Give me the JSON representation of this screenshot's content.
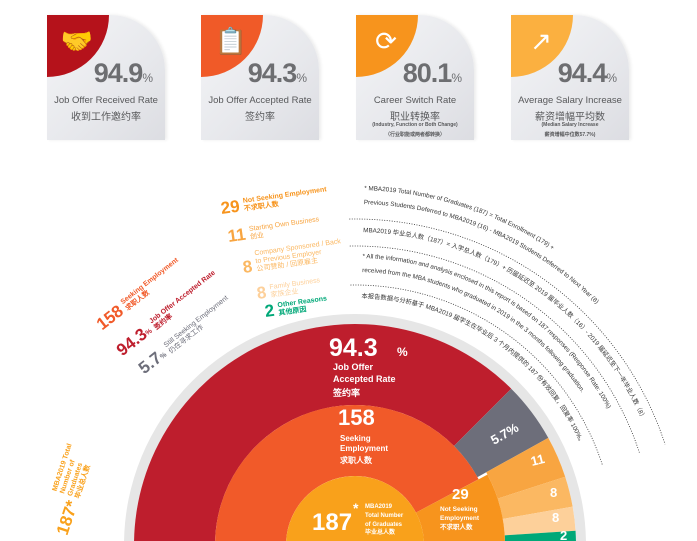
{
  "cards": [
    {
      "value": "94.9",
      "unit": "%",
      "label_en": "Job Offer Received Rate",
      "label_zh": "收到工作邀约率",
      "note_en": "",
      "note_zh": "",
      "color": "#b5121b",
      "icon": "handshake-icon"
    },
    {
      "value": "94.3",
      "unit": "%",
      "label_en": "Job Offer Accepted Rate",
      "label_zh": "签约率",
      "note_en": "",
      "note_zh": "",
      "color": "#f05a28",
      "icon": "contract-icon"
    },
    {
      "value": "80.1",
      "unit": "%",
      "label_en": "Career Switch Rate",
      "label_zh": "职业转换率",
      "note_en": "(Industry, Function or Both Change)",
      "note_zh": "（行业职能或两者都转换）",
      "color": "#f7941d",
      "icon": "career-switch-icon"
    },
    {
      "value": "94.4",
      "unit": "%",
      "label_en": "Average Salary Increase",
      "label_zh": "薪资增幅平均数",
      "note_en": "(Median Salary Increase",
      "note_zh": "薪资增幅中位数57.7%)",
      "color": "#fbb040",
      "icon": "salary-growth-icon"
    }
  ],
  "legend": {
    "not_seeking": {
      "value": "29",
      "en": "Not Seeking Employment",
      "zh": "不求职人数"
    },
    "own_business": {
      "value": "11",
      "en": "Starting Own Business",
      "zh": "创业"
    },
    "sponsored": {
      "value": "8",
      "en": "Company Sponsored / Back to Previous Employer",
      "zh": "公司赞助 / 回原雇主"
    },
    "family": {
      "value": "8",
      "en": "Family Business",
      "zh": "家族企业"
    },
    "other": {
      "value": "2",
      "en": "Other Reasons",
      "zh": "其他原因"
    },
    "seeking": {
      "value": "158",
      "en": "Seeking Employment",
      "zh": "求职人数"
    },
    "accepted": {
      "value": "94.3",
      "unit": "%",
      "en": "Job Offer Accepted Rate",
      "zh": "签约率"
    },
    "still": {
      "value": "5.7",
      "unit": "%",
      "en": "Still Seeking Employment",
      "zh": "仍在寻求工作"
    },
    "total": {
      "value": "187*",
      "en": "MBA2019 Total Number of Graduates",
      "zh": "毕业总人数"
    }
  },
  "notes": [
    "* MBA2019 Total Number of Graduates (187) = Total Enrollment (179) +",
    "Previous Students Deferred to MBA2019 (16) - MBA2019 Students Deferred to Next Year (8)",
    "MBA2019 毕业总人数（187）= 入学总人数（179）+ 历届延迟至 2019 届毕业人数（16）- 2019 届延迟至下一年毕业人数（8）",
    "* All the information and analysis enclosed in this report is based on 187 responses (Response Rate: 100%)",
    "received from the MBA students who graduated in 2019 in the 3 months following graduation.",
    "本报告数据与分析基于 MBA2019 届学生在毕业后 3 个月内提供的 187 份有效回复，回复率 100%。"
  ],
  "chart_labels": {
    "accepted_value": "94.3",
    "accepted_unit": "%",
    "accepted_en1": "Job Offer",
    "accepted_en2": "Accepted Rate",
    "accepted_zh": "签约率",
    "seeking_value": "158",
    "seeking_en1": "Seeking",
    "seeking_en2": "Employment",
    "seeking_zh": "求职人数",
    "total_value": "187",
    "total_star": "*",
    "total_en1": "MBA2019",
    "total_en2": "Total Number",
    "total_en3": "of Graduates",
    "total_zh": "毕业总人数",
    "not_value": "29",
    "not_en1": "Not Seeking",
    "not_en2": "Employment",
    "not_zh": "不求职人数",
    "still_value": "5.7%",
    "own": "11",
    "sponsored": "8",
    "family": "8",
    "other": "2"
  },
  "chart_data": {
    "type": "pie",
    "variant": "semicircular sunburst",
    "levels": [
      [
        {
          "name": "MBA2019 Total Number of Graduates",
          "value": 187,
          "color": "#f9a11b"
        }
      ],
      [
        {
          "name": "Seeking Employment",
          "value": 158,
          "color": "#f15a29"
        },
        {
          "name": "Not Seeking Employment",
          "value": 29,
          "color": "#f7941d"
        }
      ],
      [
        {
          "name": "Job Offer Accepted Rate",
          "value": 94.3,
          "unit": "%",
          "parent": "Seeking Employment",
          "color": "#be1e2d"
        },
        {
          "name": "Still Seeking Employment",
          "value": 5.7,
          "unit": "%",
          "parent": "Seeking Employment",
          "color": "#6d6e7a"
        },
        {
          "name": "Starting Own Business",
          "value": 11,
          "parent": "Not Seeking Employment",
          "color": "#f8a541"
        },
        {
          "name": "Company Sponsored / Back to Previous Employer",
          "value": 8,
          "parent": "Not Seeking Employment",
          "color": "#fbb862"
        },
        {
          "name": "Family Business",
          "value": 8,
          "parent": "Not Seeking Employment",
          "color": "#fdd09a"
        },
        {
          "name": "Other Reasons",
          "value": 2,
          "parent": "Not Seeking Employment",
          "color": "#00a878"
        }
      ]
    ]
  }
}
